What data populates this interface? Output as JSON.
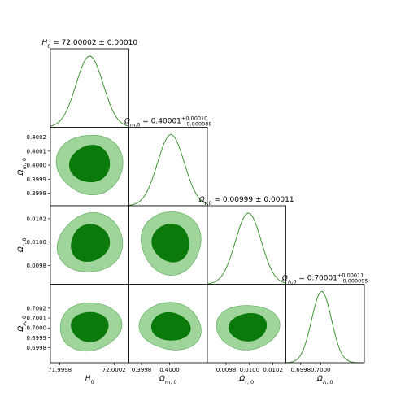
{
  "chart_data": {
    "type": "corner",
    "colors": {
      "line": "#2e8b22",
      "fill_inner": "#0a7a0a",
      "fill_outer": "#9fd49a",
      "outline": "#55a855"
    },
    "parameters": [
      {
        "label": "H₀",
        "label_sym": "H",
        "label_sub": "0",
        "title_lhs": "H₀ = ",
        "title_value": "72.00002 ± 0.00010",
        "mean": 72.00002,
        "sigma": 0.0001,
        "range": [
          71.99973,
          72.00031
        ],
        "ticks": [
          71.9998,
          72.0002
        ],
        "tick_labels": [
          "71.9998",
          "72.0002"
        ]
      },
      {
        "label": "Ωm,0",
        "label_sym": "Ω",
        "label_sub": "m, 0",
        "title_lhs": "Ωm,0 = ",
        "title_value": "0.40001",
        "title_sup": "+0.00010",
        "title_sub": "−0.000088",
        "mean": 0.40001,
        "sigma": 9.5e-05,
        "range": [
          0.39971,
          0.40027
        ],
        "ticks": [
          0.3998,
          0.3999,
          0.4,
          0.4001,
          0.4002
        ],
        "tick_labels": [
          "0.3998",
          "0.3999",
          "0.4000",
          "0.4001",
          "0.4002"
        ],
        "x_ticks": [
          0.3998,
          0.4
        ],
        "x_tick_labels": [
          "0.3998",
          "0.4000"
        ]
      },
      {
        "label": "Ωr,0",
        "label_sym": "Ω",
        "label_sub": "r, 0",
        "title_lhs": "Ωr,0 = ",
        "title_value": "0.00999 ± 0.00011",
        "mean": 0.00999,
        "sigma": 0.00011,
        "range": [
          0.00964,
          0.01031
        ],
        "ticks": [
          0.0098,
          0.01,
          0.0102
        ],
        "tick_labels": [
          "0.0098",
          "0.0100",
          "0.0102"
        ]
      },
      {
        "label": "ΩΛ,0",
        "label_sym": "Ω",
        "label_sub": "Λ, 0",
        "title_lhs": "ΩΛ,0 = ",
        "title_value": "0.70001",
        "title_sup": "+0.00011",
        "title_sub": "−0.000095",
        "mean": 0.70001,
        "sigma": 0.0001,
        "range": [
          0.69965,
          0.70044
        ],
        "ticks": [
          0.6998,
          0.6999,
          0.7,
          0.7001,
          0.7002
        ],
        "tick_labels": [
          "0.6998",
          "0.6999",
          "0.7000",
          "0.7001",
          "0.7002"
        ],
        "x_ticks": [
          0.6998,
          0.7
        ],
        "x_tick_labels": [
          "0.6998",
          "0.7000"
        ]
      }
    ],
    "contour_levels": [
      "68%",
      "95%"
    ]
  }
}
